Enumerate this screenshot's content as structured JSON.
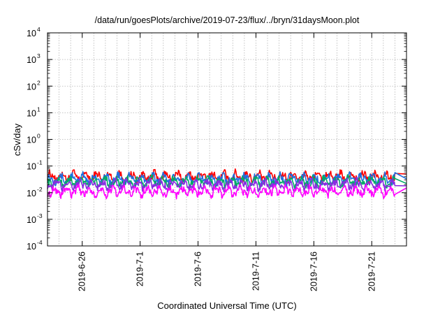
{
  "chart_data": {
    "type": "line",
    "title": "/data/run/goesPlots/archive/2019-07-23/flux/../bryn/31daysMoon.plot",
    "xlabel": "Coordinated Universal Time (UTC)",
    "ylabel": "cSv/day",
    "y_scale": "log",
    "ylim": [
      0.0001,
      10000
    ],
    "y_ticks": [
      {
        "mantissa": "10",
        "exp": "-4"
      },
      {
        "mantissa": "10",
        "exp": "-3"
      },
      {
        "mantissa": "10",
        "exp": "-2"
      },
      {
        "mantissa": "10",
        "exp": "-1"
      },
      {
        "mantissa": "10",
        "exp": "0"
      },
      {
        "mantissa": "10",
        "exp": "1"
      },
      {
        "mantissa": "10",
        "exp": "2"
      },
      {
        "mantissa": "10",
        "exp": "3"
      },
      {
        "mantissa": "10",
        "exp": "4"
      }
    ],
    "xlim": [
      "2019-06-23",
      "2019-07-24"
    ],
    "x_ticks": [
      "2019-6-26",
      "2019-7-1",
      "2019-7-6",
      "2019-7-11",
      "2019-7-16",
      "2019-7-21"
    ],
    "x_tick_dates": [
      "2019-06-26",
      "2019-07-01",
      "2019-07-06",
      "2019-07-11",
      "2019-07-16",
      "2019-07-21"
    ],
    "grid": true,
    "series": [
      {
        "color": "#ff0000",
        "base": 0.04,
        "last": 0.05,
        "x": [
          "2019-06-23",
          "2019-07-23"
        ]
      },
      {
        "color": "#1f6fe0",
        "base": 0.033,
        "last": 0.033,
        "x": [
          "2019-06-23",
          "2019-07-23"
        ]
      },
      {
        "color": "#00aa66",
        "base": 0.025,
        "last": 0.022,
        "x": [
          "2019-06-23",
          "2019-07-23"
        ]
      },
      {
        "color": "#8a2be2",
        "base": 0.02,
        "last": 0.018,
        "x": [
          "2019-06-23",
          "2019-07-23"
        ]
      },
      {
        "color": "#ff00ff",
        "base": 0.011,
        "last": 0.015,
        "x": [
          "2019-06-23",
          "2019-07-23"
        ]
      }
    ]
  }
}
